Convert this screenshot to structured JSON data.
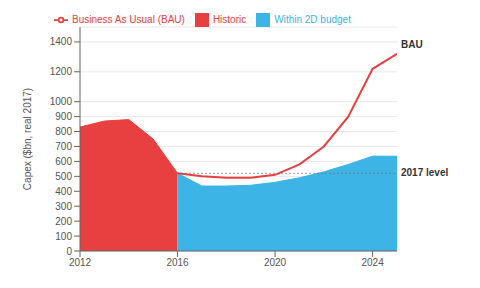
{
  "chart_data": {
    "type": "area",
    "ylabel": "Capex ($bn, real 2017)",
    "x": [
      2012,
      2013,
      2014,
      2015,
      2016,
      2017,
      2018,
      2019,
      2020,
      2021,
      2022,
      2023,
      2024,
      2025
    ],
    "series": [
      {
        "name": "Historic",
        "type": "area",
        "color": "#e84040",
        "values": [
          830,
          870,
          880,
          750,
          520,
          null,
          null,
          null,
          null,
          null,
          null,
          null,
          null,
          null
        ]
      },
      {
        "name": "Within 2D budget",
        "type": "area",
        "color": "#3cb4e5",
        "values": [
          null,
          null,
          null,
          null,
          520,
          435,
          435,
          440,
          460,
          490,
          530,
          580,
          635,
          635
        ]
      },
      {
        "name": "Business As Usual (BAU)",
        "type": "line",
        "color": "#e84040",
        "values": [
          null,
          null,
          null,
          null,
          520,
          500,
          490,
          490,
          510,
          580,
          700,
          900,
          1220,
          1320
        ]
      }
    ],
    "annotations": [
      {
        "text": "BAU",
        "series": "Business As Usual (BAU)"
      },
      {
        "text": "2017 level",
        "x": [
          2016,
          2025
        ],
        "y": 520,
        "color": "#666666",
        "line_style": "dotted"
      }
    ],
    "xlim": [
      2012,
      2025
    ],
    "ylim": [
      0,
      1500
    ],
    "xticks": [
      2012,
      2016,
      2020,
      2024
    ],
    "yticks": [
      0,
      100,
      200,
      300,
      400,
      500,
      600,
      700,
      800,
      900,
      1000,
      1200,
      1400
    ],
    "grid": true,
    "legend": "top"
  }
}
